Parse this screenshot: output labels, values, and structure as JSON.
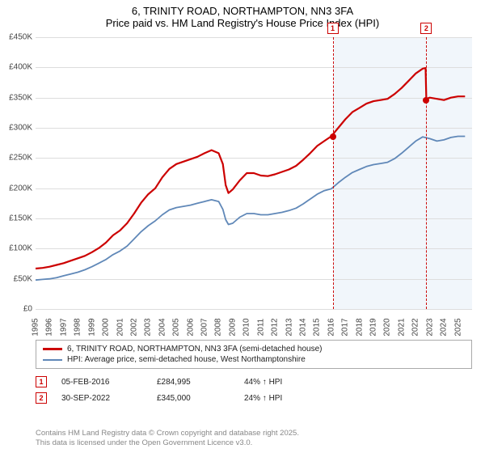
{
  "title": {
    "line1": "6, TRINITY ROAD, NORTHAMPTON, NN3 3FA",
    "line2": "Price paid vs. HM Land Registry's House Price Index (HPI)"
  },
  "chart": {
    "type": "line",
    "ylim": [
      0,
      450000
    ],
    "ytick_step": 50000,
    "yticks": [
      "£0",
      "£50K",
      "£100K",
      "£150K",
      "£200K",
      "£250K",
      "£300K",
      "£350K",
      "£400K",
      "£450K"
    ],
    "xlim": [
      1995,
      2026
    ],
    "xticks": [
      1995,
      1996,
      1997,
      1998,
      1999,
      2000,
      2001,
      2002,
      2003,
      2004,
      2005,
      2006,
      2007,
      2008,
      2009,
      2010,
      2011,
      2012,
      2013,
      2014,
      2015,
      2016,
      2017,
      2018,
      2019,
      2020,
      2021,
      2022,
      2023,
      2024,
      2025
    ],
    "grid_color": "#dddddd",
    "background_color": "#ffffff",
    "shaded_band": {
      "x_start": 2016.1,
      "x_end": 2026,
      "color": "#f1f6fb"
    },
    "series": [
      {
        "name": "price_paid",
        "color": "#cc0000",
        "width": 2.2,
        "points": [
          [
            1995.0,
            67000
          ],
          [
            1995.5,
            68000
          ],
          [
            1996.0,
            70000
          ],
          [
            1996.5,
            73000
          ],
          [
            1997.0,
            76000
          ],
          [
            1997.5,
            80000
          ],
          [
            1998.0,
            84000
          ],
          [
            1998.5,
            88000
          ],
          [
            1999.0,
            94000
          ],
          [
            1999.5,
            101000
          ],
          [
            2000.0,
            110000
          ],
          [
            2000.5,
            122000
          ],
          [
            2001.0,
            130000
          ],
          [
            2001.5,
            142000
          ],
          [
            2002.0,
            158000
          ],
          [
            2002.5,
            176000
          ],
          [
            2003.0,
            190000
          ],
          [
            2003.5,
            200000
          ],
          [
            2004.0,
            218000
          ],
          [
            2004.5,
            232000
          ],
          [
            2005.0,
            240000
          ],
          [
            2005.5,
            244000
          ],
          [
            2006.0,
            248000
          ],
          [
            2006.5,
            252000
          ],
          [
            2007.0,
            258000
          ],
          [
            2007.5,
            263000
          ],
          [
            2008.0,
            258000
          ],
          [
            2008.3,
            240000
          ],
          [
            2008.5,
            205000
          ],
          [
            2008.7,
            192000
          ],
          [
            2009.0,
            198000
          ],
          [
            2009.5,
            213000
          ],
          [
            2010.0,
            225000
          ],
          [
            2010.5,
            225000
          ],
          [
            2011.0,
            221000
          ],
          [
            2011.5,
            220000
          ],
          [
            2012.0,
            223000
          ],
          [
            2012.5,
            227000
          ],
          [
            2013.0,
            231000
          ],
          [
            2013.5,
            237000
          ],
          [
            2014.0,
            247000
          ],
          [
            2014.5,
            258000
          ],
          [
            2015.0,
            270000
          ],
          [
            2015.5,
            278000
          ],
          [
            2016.0,
            286000
          ],
          [
            2016.5,
            300000
          ],
          [
            2017.0,
            314000
          ],
          [
            2017.5,
            326000
          ],
          [
            2018.0,
            333000
          ],
          [
            2018.5,
            340000
          ],
          [
            2019.0,
            344000
          ],
          [
            2019.5,
            346000
          ],
          [
            2020.0,
            348000
          ],
          [
            2020.5,
            356000
          ],
          [
            2021.0,
            366000
          ],
          [
            2021.5,
            378000
          ],
          [
            2022.0,
            390000
          ],
          [
            2022.5,
            398000
          ],
          [
            2022.7,
            399000
          ],
          [
            2022.75,
            348000
          ],
          [
            2023.0,
            350000
          ],
          [
            2023.5,
            348000
          ],
          [
            2024.0,
            346000
          ],
          [
            2024.5,
            350000
          ],
          [
            2025.0,
            352000
          ],
          [
            2025.5,
            352000
          ]
        ]
      },
      {
        "name": "hpi",
        "color": "#6088b8",
        "width": 1.8,
        "points": [
          [
            1995.0,
            48000
          ],
          [
            1995.5,
            49000
          ],
          [
            1996.0,
            50000
          ],
          [
            1996.5,
            52000
          ],
          [
            1997.0,
            55000
          ],
          [
            1997.5,
            58000
          ],
          [
            1998.0,
            61000
          ],
          [
            1998.5,
            65000
          ],
          [
            1999.0,
            70000
          ],
          [
            1999.5,
            76000
          ],
          [
            2000.0,
            82000
          ],
          [
            2000.5,
            90000
          ],
          [
            2001.0,
            96000
          ],
          [
            2001.5,
            104000
          ],
          [
            2002.0,
            116000
          ],
          [
            2002.5,
            128000
          ],
          [
            2003.0,
            138000
          ],
          [
            2003.5,
            146000
          ],
          [
            2004.0,
            156000
          ],
          [
            2004.5,
            164000
          ],
          [
            2005.0,
            168000
          ],
          [
            2005.5,
            170000
          ],
          [
            2006.0,
            172000
          ],
          [
            2006.5,
            175000
          ],
          [
            2007.0,
            178000
          ],
          [
            2007.5,
            181000
          ],
          [
            2008.0,
            178000
          ],
          [
            2008.3,
            165000
          ],
          [
            2008.5,
            148000
          ],
          [
            2008.7,
            140000
          ],
          [
            2009.0,
            142000
          ],
          [
            2009.5,
            152000
          ],
          [
            2010.0,
            158000
          ],
          [
            2010.5,
            158000
          ],
          [
            2011.0,
            156000
          ],
          [
            2011.5,
            156000
          ],
          [
            2012.0,
            158000
          ],
          [
            2012.5,
            160000
          ],
          [
            2013.0,
            163000
          ],
          [
            2013.5,
            167000
          ],
          [
            2014.0,
            174000
          ],
          [
            2014.5,
            182000
          ],
          [
            2015.0,
            190000
          ],
          [
            2015.5,
            196000
          ],
          [
            2016.0,
            199000
          ],
          [
            2016.5,
            209000
          ],
          [
            2017.0,
            218000
          ],
          [
            2017.5,
            226000
          ],
          [
            2018.0,
            231000
          ],
          [
            2018.5,
            236000
          ],
          [
            2019.0,
            239000
          ],
          [
            2019.5,
            241000
          ],
          [
            2020.0,
            243000
          ],
          [
            2020.5,
            249000
          ],
          [
            2021.0,
            258000
          ],
          [
            2021.5,
            268000
          ],
          [
            2022.0,
            278000
          ],
          [
            2022.5,
            285000
          ],
          [
            2023.0,
            282000
          ],
          [
            2023.5,
            278000
          ],
          [
            2024.0,
            280000
          ],
          [
            2024.5,
            284000
          ],
          [
            2025.0,
            286000
          ],
          [
            2025.5,
            286000
          ]
        ]
      }
    ],
    "markers": [
      {
        "id": "1",
        "x": 2016.1,
        "y_dot": 284995,
        "dot_color": "#cc0000"
      },
      {
        "id": "2",
        "x": 2022.75,
        "y_dot": 345000,
        "dot_color": "#cc0000"
      }
    ]
  },
  "legend": {
    "items": [
      {
        "color": "#cc0000",
        "label": "6, TRINITY ROAD, NORTHAMPTON, NN3 3FA (semi-detached house)"
      },
      {
        "color": "#6088b8",
        "label": "HPI: Average price, semi-detached house, West Northamptonshire"
      }
    ]
  },
  "sales": [
    {
      "id": "1",
      "date": "05-FEB-2016",
      "price": "£284,995",
      "delta": "44% ↑ HPI"
    },
    {
      "id": "2",
      "date": "30-SEP-2022",
      "price": "£345,000",
      "delta": "24% ↑ HPI"
    }
  ],
  "attribution": {
    "line1": "Contains HM Land Registry data © Crown copyright and database right 2025.",
    "line2": "This data is licensed under the Open Government Licence v3.0."
  }
}
